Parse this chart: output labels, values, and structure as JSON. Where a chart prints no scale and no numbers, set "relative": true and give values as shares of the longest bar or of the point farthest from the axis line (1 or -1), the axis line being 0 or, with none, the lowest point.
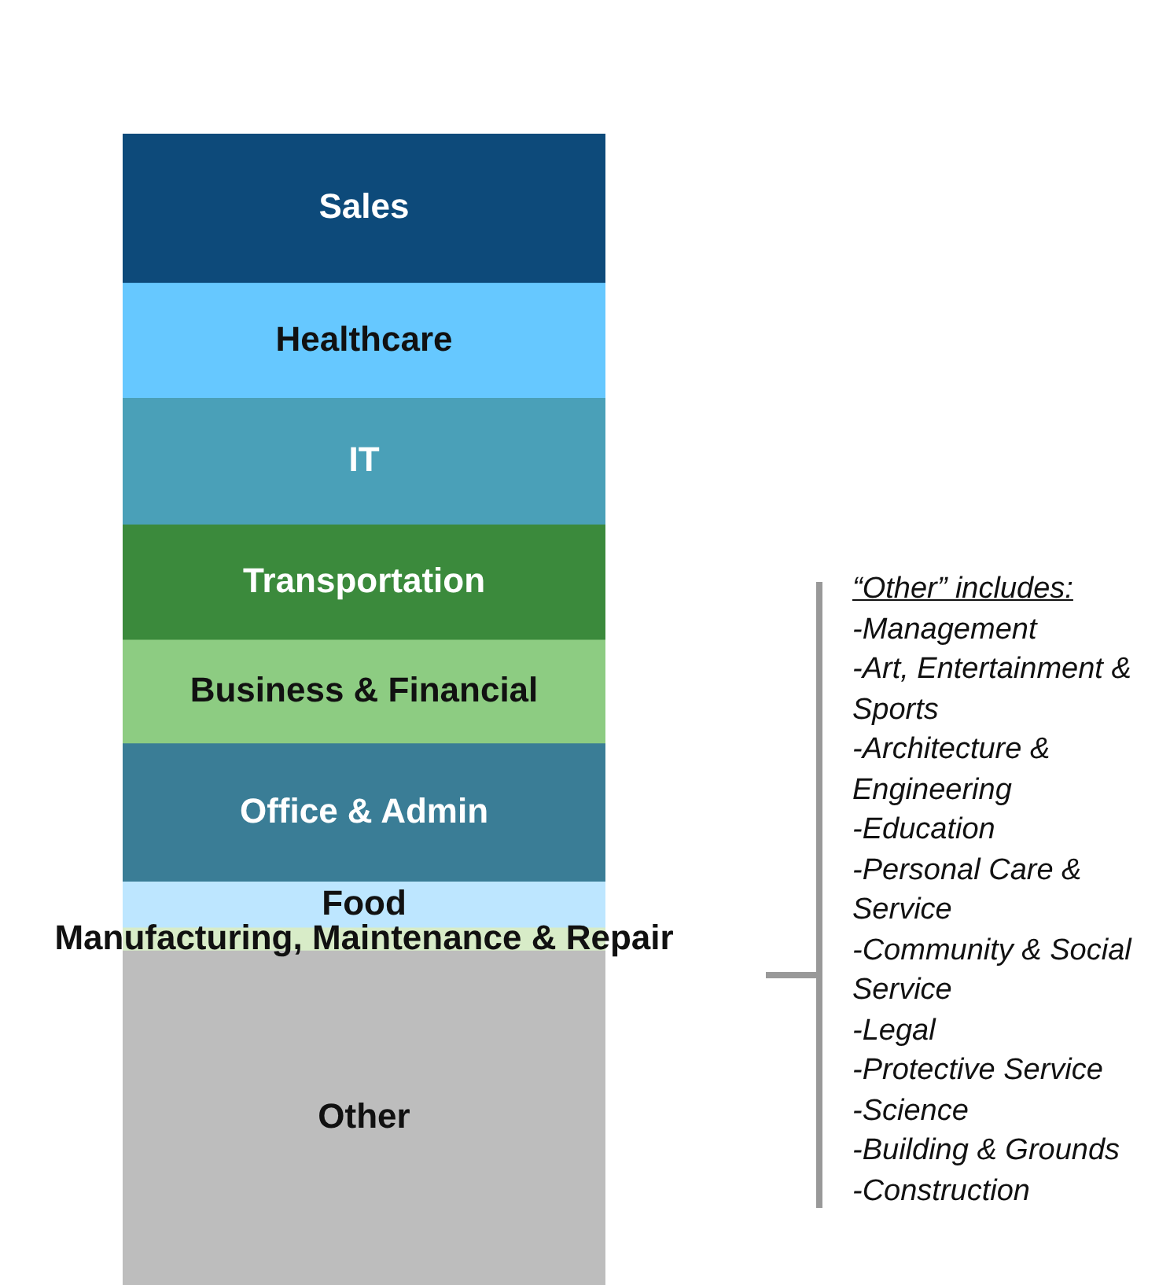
{
  "chart_data": {
    "type": "bar",
    "stacked": true,
    "relative": true,
    "legend": false,
    "categories": [
      null
    ],
    "series": [
      {
        "name": "Other",
        "color": "#bdbdbd",
        "values": [
          0.29
        ]
      },
      {
        "name": "Manufacturing, Maintenance & Repair",
        "color": "#d8ecc8",
        "values": [
          0.02
        ]
      },
      {
        "name": "Food",
        "color": "#bde6ff",
        "values": [
          0.04
        ]
      },
      {
        "name": "Office & Admin",
        "color": "#3a7d96",
        "values": [
          0.12
        ]
      },
      {
        "name": "Business & Financial",
        "color": "#8dcc82",
        "values": [
          0.09
        ]
      },
      {
        "name": "Transportation",
        "color": "#3b8a3c",
        "values": [
          0.1
        ]
      },
      {
        "name": "IT",
        "color": "#4aa0b8",
        "values": [
          0.11
        ]
      },
      {
        "name": "Healthcare",
        "color": "#66c8ff",
        "values": [
          0.1
        ]
      },
      {
        "name": "Sales",
        "color": "#0d4a7a",
        "values": [
          0.13
        ]
      }
    ],
    "annotations": [
      "“Other” includes:",
      "-Management",
      "-Art, Entertainment & Sports",
      "-Architecture & Engineering",
      "-Education",
      "-Personal Care & Service",
      "-Community & Social Service",
      "-Legal",
      "-Protective Service",
      "-Science",
      "-Building & Grounds",
      "-Construction"
    ]
  }
}
